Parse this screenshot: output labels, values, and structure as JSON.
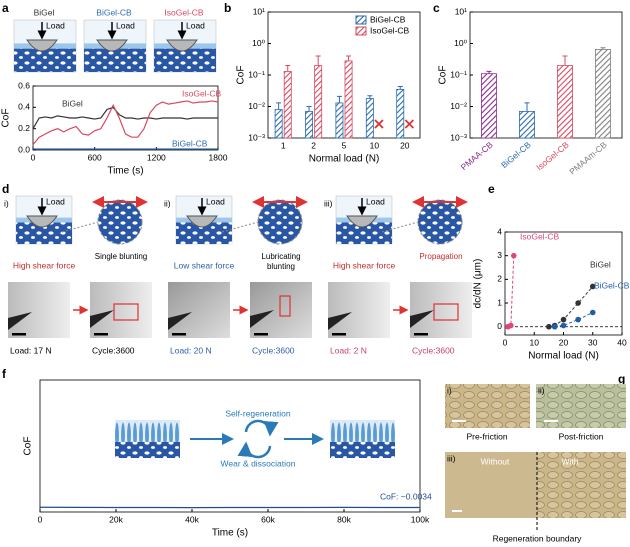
{
  "chart_data": [
    {
      "type": "line",
      "xlabel": "Time (s)",
      "ylabel": "CoF",
      "x": [
        0,
        60,
        120,
        180,
        240,
        300,
        360,
        420,
        480,
        540,
        600,
        660,
        720,
        780,
        840,
        900,
        960,
        1020,
        1080,
        1140,
        1200,
        1260,
        1320,
        1380,
        1440,
        1500,
        1560,
        1620,
        1680,
        1740,
        1800
      ],
      "series": [
        {
          "name": "BiGel",
          "color": "#333333",
          "values": [
            0.2,
            0.3,
            0.31,
            0.3,
            0.32,
            0.31,
            0.3,
            0.3,
            0.31,
            0.3,
            0.29,
            0.3,
            0.38,
            0.4,
            0.33,
            0.3,
            0.3,
            0.29,
            0.3,
            0.3,
            0.29,
            0.3,
            0.3,
            0.3,
            0.3,
            0.29,
            0.3,
            0.3,
            0.3,
            0.3,
            0.3
          ]
        },
        {
          "name": "IsoGel-CB",
          "color": "#d9485f",
          "values": [
            0.05,
            0.12,
            0.15,
            0.18,
            0.2,
            0.17,
            0.2,
            0.22,
            0.15,
            0.14,
            0.18,
            0.2,
            0.3,
            0.42,
            0.3,
            0.15,
            0.12,
            0.12,
            0.2,
            0.35,
            0.42,
            0.45,
            0.43,
            0.44,
            0.45,
            0.46,
            0.44,
            0.45,
            0.45,
            0.46,
            0.45
          ]
        },
        {
          "name": "BiGel-CB",
          "color": "#2b6cb0",
          "values": [
            0.01,
            0.01,
            0.01,
            0.01,
            0.01,
            0.01,
            0.01,
            0.01,
            0.01,
            0.01,
            0.01,
            0.01,
            0.01,
            0.01,
            0.01,
            0.01,
            0.01,
            0.01,
            0.01,
            0.01,
            0.01,
            0.01,
            0.01,
            0.01,
            0.01,
            0.01,
            0.01,
            0.01,
            0.01,
            0.01,
            0.01
          ]
        }
      ],
      "xlim": [
        0,
        1800
      ],
      "xticks": [
        0,
        600,
        1200,
        1800
      ],
      "ylim": [
        0,
        0.6
      ],
      "yticks": [
        {
          "value": 0,
          "label": "0.0"
        },
        {
          "value": 0.2,
          "label": "0.2"
        },
        {
          "value": 0.4,
          "label": "0.4"
        },
        {
          "value": 0.6,
          "label": "0.6"
        }
      ]
    },
    {
      "type": "bar",
      "xlabel": "Normal load (N)",
      "ylabel": "CoF",
      "yscale": "log",
      "legend": "upper right",
      "categories": [
        "1",
        "2",
        "5",
        "10",
        "20"
      ],
      "series": [
        {
          "name": "BiGel-CB",
          "color": "#2b6cb0",
          "values": [
            0.008,
            0.007,
            0.013,
            0.018,
            0.035
          ],
          "errors": [
            0.005,
            0.003,
            0.008,
            0.004,
            0.008
          ]
        },
        {
          "name": "IsoGel-CB",
          "color": "#d9485f",
          "values": [
            0.13,
            0.2,
            0.28,
            null,
            null
          ],
          "errors": [
            0.07,
            0.2,
            0.12,
            null,
            null
          ]
        }
      ],
      "ylim": [
        0.001,
        10
      ],
      "yticks": [
        {
          "value": 0.001,
          "label": "10⁻³"
        },
        {
          "value": 0.01,
          "label": "10⁻²"
        },
        {
          "value": 0.1,
          "label": "10⁻¹"
        },
        {
          "value": 1,
          "label": "10⁰"
        },
        {
          "value": 10,
          "label": "10¹"
        }
      ]
    },
    {
      "type": "bar",
      "ylabel": "CoF",
      "yscale": "log",
      "categories": [
        "PMAA-CB",
        "BiGel-CB",
        "IsoGel-CB",
        "PMAAm-CB"
      ],
      "values": [
        0.11,
        0.007,
        0.2,
        0.65
      ],
      "errors": [
        0.02,
        0.006,
        0.2,
        0.08
      ],
      "colors": [
        "#8b2d8b",
        "#2b6cb0",
        "#d9485f",
        "#808080"
      ],
      "ylim": [
        0.001,
        10
      ],
      "yticks": [
        {
          "value": 0.001,
          "label": "10⁻³"
        },
        {
          "value": 0.01,
          "label": "10⁻²"
        },
        {
          "value": 0.1,
          "label": "10⁻¹"
        },
        {
          "value": 1,
          "label": "10⁰"
        },
        {
          "value": 10,
          "label": "10¹"
        }
      ]
    },
    {
      "type": "scatter",
      "xlabel": "Normal load (N)",
      "ylabel": "dc/dN (μm)",
      "series": [
        {
          "name": "IsoGel-CB",
          "color": "#e0457b",
          "x": [
            1,
            2,
            3
          ],
          "values": [
            0,
            0.05,
            3.0
          ]
        },
        {
          "name": "BiGel",
          "color": "#333333",
          "x": [
            15,
            17,
            20,
            25,
            30
          ],
          "values": [
            0,
            0.05,
            0.3,
            1.0,
            1.7
          ]
        },
        {
          "name": "BiGel-CB",
          "color": "#1f5fa8",
          "x": [
            17,
            20,
            25,
            30
          ],
          "values": [
            0,
            0.05,
            0.3,
            0.6
          ]
        }
      ],
      "xlim": [
        0,
        40
      ],
      "xticks": [
        0,
        10,
        20,
        30,
        40
      ],
      "ylim": [
        -0.35,
        4
      ],
      "yticks": [
        0,
        1,
        2,
        3,
        4
      ]
    },
    {
      "type": "line",
      "xlabel": "Time (s)",
      "ylabel": "CoF",
      "annotation": "CoF: ~0.0034",
      "color": "#1f4e8c",
      "x": [
        0,
        10000,
        20000,
        30000,
        40000,
        50000,
        60000,
        70000,
        80000,
        90000,
        100000
      ],
      "values": [
        0.0036,
        0.0035,
        0.0034,
        0.0034,
        0.0033,
        0.0034,
        0.0034,
        0.0034,
        0.0035,
        0.0034,
        0.0034
      ],
      "xlim": [
        0,
        100000
      ],
      "xticks": [
        0,
        {
          "value": 20000,
          "label": "20k"
        },
        {
          "value": 40000,
          "label": "40k"
        },
        {
          "value": 60000,
          "label": "60k"
        },
        {
          "value": 80000,
          "label": "80k"
        },
        {
          "value": 100000,
          "label": "100k"
        }
      ],
      "ylim": [
        0,
        0.1
      ]
    }
  ],
  "figure": {
    "panel_labels": [
      "a",
      "b",
      "c",
      "d",
      "e",
      "f",
      "g"
    ],
    "a": {
      "schematics": [
        "BiGel",
        "BiGel-CB",
        "IsoGel-CB"
      ],
      "load": "Load"
    },
    "d": {
      "load": "Load",
      "parts": [
        {
          "label": "i)",
          "force": "High shear force",
          "mode": "Single blunting",
          "load": "Load: 17 N",
          "cycle": "Cycle:3600"
        },
        {
          "label": "ii)",
          "force": "Low shear force",
          "mode": "Lubricating blunting",
          "load": "Load: 20 N",
          "cycle": "Cycle:3600"
        },
        {
          "label": "iii)",
          "force": "High shear force",
          "mode": "Propagation",
          "load": "Load: 2 N",
          "cycle": "Cycle:3600"
        }
      ]
    },
    "f": {
      "top": "Self-regeneration",
      "bottom": "Wear & dissociation"
    },
    "g": {
      "i": "i)",
      "ii": "ii)",
      "iii": "iii)",
      "pre": "Pre-friction",
      "post": "Post-friction",
      "without": "Without",
      "with": "With",
      "boundary": "Regeneration boundary"
    }
  }
}
